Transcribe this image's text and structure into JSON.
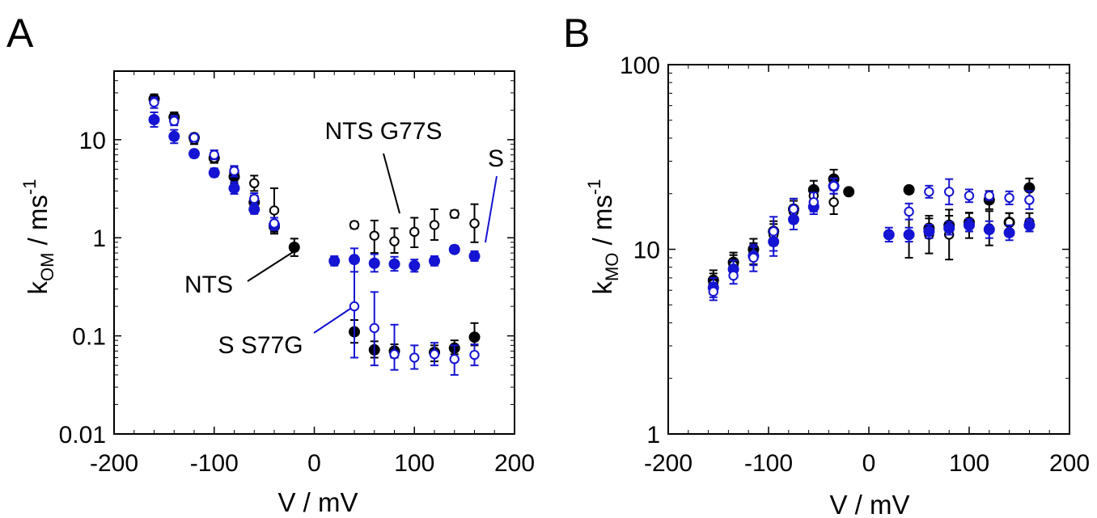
{
  "panels": [
    {
      "letter": "A",
      "ylabel": {
        "main": "k",
        "sub": "OM",
        "rest": " / ms",
        "sup": "-1"
      },
      "xlabel": "V / mV"
    },
    {
      "letter": "B",
      "ylabel": {
        "main": "k",
        "sub": "MO",
        "rest": " / ms",
        "sup": "-1"
      },
      "xlabel": "V / mV"
    }
  ],
  "chart_data": [
    {
      "type": "scatter",
      "panel": "A",
      "yscale": "log",
      "xlim": [
        -200,
        200
      ],
      "ylim": [
        0.01,
        50
      ],
      "xticks": [
        -200,
        -100,
        0,
        100,
        200
      ],
      "yticks": [
        0.01,
        0.1,
        1,
        10
      ],
      "yticklabels": [
        "0.01",
        "0.1",
        "1",
        "10"
      ],
      "xlabel": "V / mV",
      "ylabel": "kOM / ms-1",
      "grid": false,
      "series": [
        {
          "name": "NTS",
          "color": "#000000",
          "filled": true,
          "points": [
            {
              "x": -160,
              "y": 26,
              "lo": 23,
              "hi": 29
            },
            {
              "x": -140,
              "y": 17,
              "lo": 15,
              "hi": 19
            },
            {
              "x": -120,
              "y": 10.5,
              "lo": 9.5,
              "hi": 11.5
            },
            {
              "x": -100,
              "y": 6.5,
              "lo": 5.8,
              "hi": 7.4
            },
            {
              "x": -80,
              "y": 4.2,
              "lo": 3.6,
              "hi": 4.9
            },
            {
              "x": -60,
              "y": 2.3,
              "lo": 2.0,
              "hi": 2.7
            },
            {
              "x": -40,
              "y": 1.3,
              "lo": 1.15,
              "hi": 1.45
            },
            {
              "x": -20,
              "y": 0.8,
              "lo": 0.65,
              "hi": 0.98
            },
            {
              "x": 40,
              "y": 0.11,
              "lo": 0.085,
              "hi": 0.145
            },
            {
              "x": 60,
              "y": 0.072,
              "lo": 0.06,
              "hi": 0.088
            },
            {
              "x": 80,
              "y": 0.07,
              "lo": 0.06,
              "hi": 0.082
            },
            {
              "x": 120,
              "y": 0.068,
              "lo": 0.055,
              "hi": 0.08
            },
            {
              "x": 140,
              "y": 0.075,
              "lo": 0.065,
              "hi": 0.09
            },
            {
              "x": 160,
              "y": 0.097,
              "lo": 0.08,
              "hi": 0.135
            }
          ]
        },
        {
          "name": "NTS G77S",
          "color": "#000000",
          "filled": false,
          "points": [
            {
              "x": -160,
              "y": 25,
              "lo": 23,
              "hi": 28
            },
            {
              "x": -140,
              "y": 16.5,
              "lo": 15,
              "hi": 18.5
            },
            {
              "x": -120,
              "y": 10,
              "lo": 9,
              "hi": 11
            },
            {
              "x": -100,
              "y": 6.5,
              "lo": 5.8,
              "hi": 7.3
            },
            {
              "x": -80,
              "y": 4.6,
              "lo": 4.0,
              "hi": 5.3
            },
            {
              "x": -60,
              "y": 3.6,
              "lo": 3.0,
              "hi": 4.3
            },
            {
              "x": -40,
              "y": 1.9,
              "lo": 1.1,
              "hi": 3.2
            },
            {
              "x": 40,
              "y": 1.35,
              "lo": 1.25,
              "hi": 1.45
            },
            {
              "x": 60,
              "y": 1.05,
              "lo": 0.7,
              "hi": 1.5
            },
            {
              "x": 80,
              "y": 0.92,
              "lo": 0.7,
              "hi": 1.25
            },
            {
              "x": 100,
              "y": 1.15,
              "lo": 0.8,
              "hi": 1.6
            },
            {
              "x": 120,
              "y": 1.35,
              "lo": 0.95,
              "hi": 1.95
            },
            {
              "x": 140,
              "y": 1.75,
              "lo": 1.6,
              "hi": 1.9
            },
            {
              "x": 160,
              "y": 1.4,
              "lo": 0.9,
              "hi": 2.2
            }
          ]
        },
        {
          "name": "S",
          "color": "#1414d2",
          "filled": true,
          "points": [
            {
              "x": -160,
              "y": 16,
              "lo": 13.5,
              "hi": 19
            },
            {
              "x": -140,
              "y": 10.8,
              "lo": 9.2,
              "hi": 12.6
            },
            {
              "x": -120,
              "y": 7.2,
              "lo": 6.6,
              "hi": 7.8
            },
            {
              "x": -100,
              "y": 4.6,
              "lo": 4.2,
              "hi": 5.1
            },
            {
              "x": -80,
              "y": 3.2,
              "lo": 2.8,
              "hi": 3.7
            },
            {
              "x": -60,
              "y": 1.95,
              "lo": 1.75,
              "hi": 2.15
            },
            {
              "x": -40,
              "y": 1.35,
              "lo": 1.2,
              "hi": 1.5
            },
            {
              "x": 20,
              "y": 0.58,
              "lo": 0.52,
              "hi": 0.65
            },
            {
              "x": 40,
              "y": 0.6,
              "lo": 0.45,
              "hi": 0.78
            },
            {
              "x": 60,
              "y": 0.55,
              "lo": 0.45,
              "hi": 0.68
            },
            {
              "x": 80,
              "y": 0.54,
              "lo": 0.46,
              "hi": 0.64
            },
            {
              "x": 100,
              "y": 0.52,
              "lo": 0.45,
              "hi": 0.6
            },
            {
              "x": 120,
              "y": 0.58,
              "lo": 0.52,
              "hi": 0.65
            },
            {
              "x": 140,
              "y": 0.76,
              "lo": 0.7,
              "hi": 0.83
            },
            {
              "x": 160,
              "y": 0.65,
              "lo": 0.58,
              "hi": 0.73
            }
          ]
        },
        {
          "name": "S S77G",
          "color": "#1414d2",
          "filled": false,
          "points": [
            {
              "x": -160,
              "y": 24,
              "lo": 21,
              "hi": 27
            },
            {
              "x": -140,
              "y": 15.5,
              "lo": 14,
              "hi": 17.5
            },
            {
              "x": -120,
              "y": 10.5,
              "lo": 9.5,
              "hi": 11.5
            },
            {
              "x": -100,
              "y": 7.0,
              "lo": 6.3,
              "hi": 7.8
            },
            {
              "x": -80,
              "y": 4.8,
              "lo": 4.2,
              "hi": 5.4
            },
            {
              "x": -60,
              "y": 2.5,
              "lo": 2.2,
              "hi": 2.85
            },
            {
              "x": -40,
              "y": 1.4,
              "lo": 1.2,
              "hi": 1.6
            },
            {
              "x": 40,
              "y": 0.2,
              "lo": 0.06,
              "hi": 0.65
            },
            {
              "x": 60,
              "y": 0.12,
              "lo": 0.05,
              "hi": 0.28
            },
            {
              "x": 80,
              "y": 0.065,
              "lo": 0.045,
              "hi": 0.13
            },
            {
              "x": 100,
              "y": 0.06,
              "lo": 0.046,
              "hi": 0.08
            },
            {
              "x": 120,
              "y": 0.065,
              "lo": 0.05,
              "hi": 0.085
            },
            {
              "x": 140,
              "y": 0.058,
              "lo": 0.04,
              "hi": 0.08
            },
            {
              "x": 160,
              "y": 0.064,
              "lo": 0.05,
              "hi": 0.082
            }
          ]
        }
      ],
      "annotations": [
        {
          "text": "NTS G77S",
          "color": "#000000",
          "x": 80,
          "y": 0.99
        },
        {
          "text": "S",
          "color": "#1414d2",
          "x": 165,
          "y": 0.7
        },
        {
          "text": "NTS",
          "color": "#000000",
          "x": -20,
          "y": 0.74
        },
        {
          "text": "S S77G",
          "color": "#1414d2",
          "x": 40,
          "y": 0.2
        }
      ]
    },
    {
      "type": "scatter",
      "panel": "B",
      "yscale": "log",
      "xlim": [
        -200,
        200
      ],
      "ylim": [
        1,
        100
      ],
      "xticks": [
        -200,
        -100,
        0,
        100,
        200
      ],
      "yticks": [
        1,
        10,
        100
      ],
      "yticklabels": [
        "1",
        "10",
        "100"
      ],
      "xlabel": "V / mV",
      "ylabel": "kMO / ms-1",
      "grid": false,
      "series": [
        {
          "name": "",
          "color": "#000000",
          "filled": true,
          "points": [
            {
              "x": -155,
              "y": 6.8,
              "lo": 6.0,
              "hi": 7.7
            },
            {
              "x": -135,
              "y": 8.5,
              "lo": 7.5,
              "hi": 9.6
            },
            {
              "x": -115,
              "y": 10,
              "lo": 8.8,
              "hi": 11.4
            },
            {
              "x": -95,
              "y": 12.5,
              "lo": 11,
              "hi": 14.2
            },
            {
              "x": -75,
              "y": 16.5,
              "lo": 14.5,
              "hi": 18.8
            },
            {
              "x": -55,
              "y": 21,
              "lo": 19,
              "hi": 23.5
            },
            {
              "x": -35,
              "y": 24,
              "lo": 21.5,
              "hi": 27
            },
            {
              "x": -20,
              "y": 20.5,
              "lo": 20,
              "hi": 21
            },
            {
              "x": 40,
              "y": 21,
              "lo": 20.5,
              "hi": 21.5
            },
            {
              "x": 60,
              "y": 13,
              "lo": 11.5,
              "hi": 14.7
            },
            {
              "x": 80,
              "y": 13.5,
              "lo": 12,
              "hi": 15.2
            },
            {
              "x": 100,
              "y": 14,
              "lo": 12.5,
              "hi": 15.7
            },
            {
              "x": 120,
              "y": 18.5,
              "lo": 16.5,
              "hi": 20.7
            },
            {
              "x": 140,
              "y": 14,
              "lo": 12.5,
              "hi": 15.7
            },
            {
              "x": 160,
              "y": 21.5,
              "lo": 19,
              "hi": 24.2
            }
          ]
        },
        {
          "name": "",
          "color": "#000000",
          "filled": false,
          "points": [
            {
              "x": -155,
              "y": 6.5,
              "lo": 5.7,
              "hi": 7.4
            },
            {
              "x": -135,
              "y": 8.2,
              "lo": 7.2,
              "hi": 9.3
            },
            {
              "x": -115,
              "y": 9.5,
              "lo": 8.3,
              "hi": 10.8
            },
            {
              "x": -95,
              "y": 12,
              "lo": 10.5,
              "hi": 13.7
            },
            {
              "x": -75,
              "y": 16,
              "lo": 14,
              "hi": 18.3
            },
            {
              "x": -55,
              "y": 19.5,
              "lo": 17.5,
              "hi": 21.7
            },
            {
              "x": -35,
              "y": 18,
              "lo": 15.5,
              "hi": 20.9
            },
            {
              "x": 40,
              "y": 12,
              "lo": 9,
              "hi": 16
            },
            {
              "x": 60,
              "y": 12,
              "lo": 9.5,
              "hi": 15.2
            },
            {
              "x": 80,
              "y": 12,
              "lo": 8.8,
              "hi": 16.4
            },
            {
              "x": 100,
              "y": 13.5,
              "lo": 11.5,
              "hi": 15.8
            },
            {
              "x": 120,
              "y": 13,
              "lo": 10.5,
              "hi": 16.1
            },
            {
              "x": 140,
              "y": 14,
              "lo": 12.5,
              "hi": 15.7
            },
            {
              "x": 160,
              "y": 14,
              "lo": 12.5,
              "hi": 15.7
            }
          ]
        },
        {
          "name": "",
          "color": "#1414d2",
          "filled": true,
          "points": [
            {
              "x": -155,
              "y": 6.2,
              "lo": 5.5,
              "hi": 7.0
            },
            {
              "x": -135,
              "y": 7.8,
              "lo": 7.0,
              "hi": 8.7
            },
            {
              "x": -115,
              "y": 9.2,
              "lo": 8.2,
              "hi": 10.3
            },
            {
              "x": -95,
              "y": 11,
              "lo": 9.8,
              "hi": 12.4
            },
            {
              "x": -75,
              "y": 14.5,
              "lo": 12.8,
              "hi": 16.4
            },
            {
              "x": -55,
              "y": 17,
              "lo": 15.5,
              "hi": 18.7
            },
            {
              "x": -35,
              "y": 22,
              "lo": 20,
              "hi": 24.2
            },
            {
              "x": 20,
              "y": 12,
              "lo": 11,
              "hi": 13.1
            },
            {
              "x": 40,
              "y": 12,
              "lo": 11,
              "hi": 13.1
            },
            {
              "x": 60,
              "y": 12.5,
              "lo": 11.5,
              "hi": 13.6
            },
            {
              "x": 80,
              "y": 13,
              "lo": 12,
              "hi": 14.1
            },
            {
              "x": 100,
              "y": 13.5,
              "lo": 12.5,
              "hi": 14.6
            },
            {
              "x": 120,
              "y": 12.8,
              "lo": 11.5,
              "hi": 14.2
            },
            {
              "x": 140,
              "y": 12.3,
              "lo": 11.2,
              "hi": 13.5
            },
            {
              "x": 160,
              "y": 13.5,
              "lo": 12.5,
              "hi": 14.6
            }
          ]
        },
        {
          "name": "",
          "color": "#1414d2",
          "filled": false,
          "points": [
            {
              "x": -155,
              "y": 5.9,
              "lo": 5.3,
              "hi": 6.6
            },
            {
              "x": -135,
              "y": 7.2,
              "lo": 6.5,
              "hi": 8.0
            },
            {
              "x": -115,
              "y": 9.0,
              "lo": 7.6,
              "hi": 10.6
            },
            {
              "x": -95,
              "y": 12.5,
              "lo": 9.2,
              "hi": 15
            },
            {
              "x": -75,
              "y": 16.5,
              "lo": 14.5,
              "hi": 18.8
            },
            {
              "x": -55,
              "y": 18,
              "lo": 16,
              "hi": 20.3
            },
            {
              "x": -35,
              "y": 22,
              "lo": 20,
              "hi": 24.2
            },
            {
              "x": 40,
              "y": 16,
              "lo": 14.5,
              "hi": 17.7
            },
            {
              "x": 60,
              "y": 20.5,
              "lo": 19,
              "hi": 22.1
            },
            {
              "x": 80,
              "y": 20.5,
              "lo": 17.5,
              "hi": 24
            },
            {
              "x": 100,
              "y": 19.5,
              "lo": 18,
              "hi": 21.1
            },
            {
              "x": 120,
              "y": 19.5,
              "lo": 18.5,
              "hi": 20.6
            },
            {
              "x": 140,
              "y": 19,
              "lo": 17.5,
              "hi": 20.6
            },
            {
              "x": 160,
              "y": 18.5,
              "lo": 16.5,
              "hi": 20.7
            }
          ]
        }
      ]
    }
  ]
}
